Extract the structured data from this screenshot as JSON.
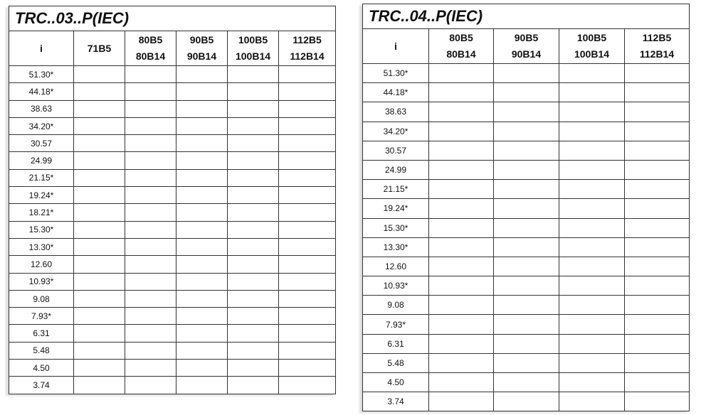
{
  "tables": [
    {
      "title": "TRC..03..P(IEC)",
      "headers": [
        [
          "i"
        ],
        [
          "71B5"
        ],
        [
          "80B5",
          "80B14"
        ],
        [
          "90B5",
          "90B14"
        ],
        [
          "100B5",
          "100B14"
        ],
        [
          "112B5",
          "112B14"
        ]
      ],
      "ratios": [
        "51.30*",
        "44.18*",
        "38.63",
        "34.20*",
        "30.57",
        "24.99",
        "21.15*",
        "19.24*",
        "18.21*",
        "15.30*",
        "13.30*",
        "12.60",
        "10.93*",
        "9.08",
        "7.93*",
        "6.31",
        "5.48",
        "4.50",
        "3.74"
      ]
    },
    {
      "title": "TRC..04..P(IEC)",
      "headers": [
        [
          "i"
        ],
        [
          "80B5",
          "80B14"
        ],
        [
          "90B5",
          "90B14"
        ],
        [
          "100B5",
          "100B14"
        ],
        [
          "112B5",
          "112B14"
        ]
      ],
      "ratios": [
        "51.30*",
        "44.18*",
        "38.63",
        "34.20*",
        "30.57",
        "24.99",
        "21.15*",
        "19.24*",
        "15.30*",
        "13.30*",
        "12.60",
        "10.93*",
        "9.08",
        "7.93*",
        "6.31",
        "5.48",
        "4.50",
        "3.74"
      ]
    }
  ]
}
